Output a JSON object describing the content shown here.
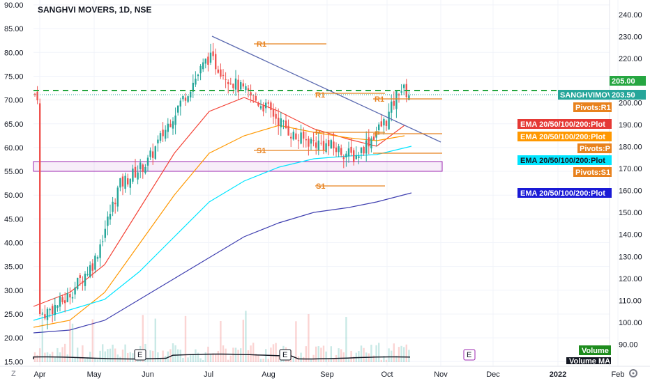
{
  "chart_data": {
    "type": "candlestick",
    "title": "SANGHVI MOVERS, 1D, NSE",
    "x_ticks": [
      "Apr",
      "May",
      "Jun",
      "Jul",
      "Aug",
      "Sep",
      "Oct",
      "Nov",
      "Dec",
      "2022",
      "Feb"
    ],
    "left_axis": {
      "ticks": [
        "90.00",
        "85.00",
        "80.00",
        "75.00",
        "70.00",
        "65.00",
        "60.00",
        "55.00",
        "50.00",
        "45.00",
        "40.00",
        "35.00",
        "30.00",
        "25.00",
        "20.00",
        "15.00"
      ],
      "range": [
        15,
        90
      ]
    },
    "right_axis": {
      "ticks": [
        "240.00",
        "230.00",
        "220.00",
        "210.00",
        "200.00",
        "190.00",
        "180.00",
        "170.00",
        "160.00",
        "150.00",
        "140.00",
        "130.00",
        "120.00",
        "110.00",
        "100.00",
        "90.00"
      ],
      "range": [
        82,
        248
      ]
    },
    "horizontal_level": 205.0,
    "last_price": 203.5,
    "support_zone": [
      57.2,
      54.8
    ],
    "trendline": {
      "from": [
        "Jul",
        83.5
      ],
      "to": [
        "Nov",
        62
      ]
    },
    "pivots": [
      {
        "label": "R1",
        "value": 82.5
      },
      {
        "label": "R1",
        "value": 70.2
      },
      {
        "label": "R1",
        "value": 70.2
      },
      {
        "label": "P",
        "value": 62.8
      },
      {
        "label": "P",
        "value": 63.0
      },
      {
        "label": "S1",
        "value": 58.5
      },
      {
        "label": "S1",
        "value": 50.2
      }
    ],
    "series": [
      {
        "name": "EMA 20/50/100/200:Plot",
        "color": "#f44336"
      },
      {
        "name": "EMA 20/50/100/200:Plot",
        "color": "#ff9800"
      },
      {
        "name": "EMA 20/50/100/200:Plot",
        "color": "#00e5ff"
      },
      {
        "name": "EMA 20/50/100/200:Plot",
        "color": "#3f3fb0"
      },
      {
        "name": "Volume",
        "color": "#26a69a"
      },
      {
        "name": "Volume MA",
        "color": "#131722"
      }
    ],
    "close_points": [
      {
        "x": "Apr 1",
        "close": 24.5
      },
      {
        "x": "Apr 15",
        "close": 28.0
      },
      {
        "x": "May 1",
        "close": 36.0
      },
      {
        "x": "May 15",
        "close": 52.0
      },
      {
        "x": "Jun 1",
        "close": 57.0
      },
      {
        "x": "Jun 15",
        "close": 68.0
      },
      {
        "x": "Jul 1",
        "close": 79.0
      },
      {
        "x": "Jul 15",
        "close": 73.0
      },
      {
        "x": "Aug 1",
        "close": 68.0
      },
      {
        "x": "Aug 15",
        "close": 62.0
      },
      {
        "x": "Sep 1",
        "close": 60.5
      },
      {
        "x": "Sep 15",
        "close": 58.0
      },
      {
        "x": "Oct 1",
        "close": 66.0
      },
      {
        "x": "Oct 8",
        "close": 72.5
      },
      {
        "x": "Oct 14",
        "close": 71.2
      }
    ]
  },
  "labels": {
    "symbol_tag": "SANGHVIMOV",
    "price_tag": "203.50",
    "level_tag": "205.00",
    "pivots_r1": "Pivots:R1",
    "ema_red": "EMA 20/50/100/200:Plot",
    "ema_orange": "EMA 20/50/100/200:Plot",
    "pivots_p": "Pivots:P",
    "ema_cyan": "EMA 20/50/100/200:Plot",
    "pivots_s1": "Pivots:S1",
    "ema_blue": "EMA 20/50/100/200:Plot",
    "volume": "Volume",
    "volume_ma": "Volume MA",
    "earnings_marker": "E"
  },
  "colors": {
    "up": "#26a69a",
    "down": "#ef5350",
    "pivot": "#e8821e",
    "zone": "#9c27b0",
    "level": "#26a641",
    "trend": "#5b6ab0"
  }
}
